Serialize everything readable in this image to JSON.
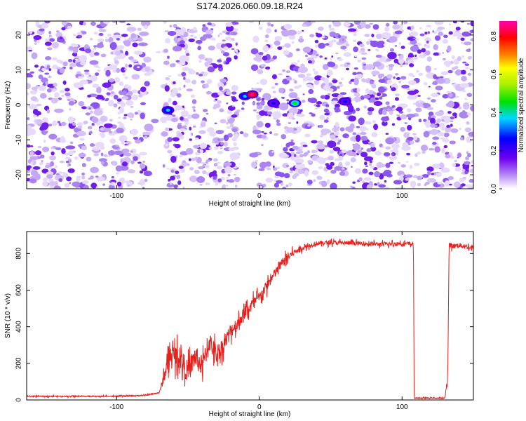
{
  "figure": {
    "title": "S174.2026.060.09.18.R24",
    "colors": {
      "line": "#e8201c",
      "frame": "#000000",
      "background": "#ffffff"
    }
  },
  "chart_data": [
    {
      "type": "heatmap",
      "title": "",
      "xlabel": "Height of straight line (km)",
      "ylabel": "Frequency (Hz)",
      "xlim": [
        -163,
        150
      ],
      "ylim": [
        -24,
        24
      ],
      "xticks": [
        -100,
        0,
        100
      ],
      "yticks": [
        -20,
        -10,
        0,
        10,
        20
      ],
      "colorbar": {
        "label": "Normalized spectral amplitude",
        "range": [
          0,
          0.88
        ],
        "ticks": [
          0.0,
          0.2,
          0.4,
          0.6,
          0.8
        ],
        "colormap": [
          "#ffffff",
          "#6e00f0",
          "#0000ff",
          "#00d8ff",
          "#00e000",
          "#ffff00",
          "#ff8000",
          "#ff0000",
          "#ff00b0"
        ]
      },
      "gaps_x": [
        [
          -78,
          -67
        ],
        [
          -14,
          -4
        ]
      ],
      "features": [
        {
          "x": -64,
          "f": -1.5,
          "amp": 0.22
        },
        {
          "x": -10,
          "f": 2.5,
          "amp": 0.28
        },
        {
          "x": -5,
          "f": 3,
          "amp": 0.88
        },
        {
          "x": 10,
          "f": 0.5,
          "amp": 0.12
        },
        {
          "x": 25,
          "f": 0.5,
          "amp": 0.38
        },
        {
          "x": 60,
          "f": 1,
          "amp": 0.08
        }
      ]
    },
    {
      "type": "line",
      "title": "",
      "xlabel": "Height of straight line (km)",
      "ylabel": "SNR (10 * v/v)",
      "xlim": [
        -163,
        150
      ],
      "ylim": [
        0,
        920
      ],
      "xticks": [
        -100,
        0,
        100
      ],
      "yticks": [
        0,
        200,
        400,
        600,
        800
      ],
      "series": [
        {
          "name": "SNR",
          "x": [
            -163,
            -140,
            -120,
            -100,
            -80,
            -70,
            -66,
            -62,
            -55,
            -50,
            -45,
            -40,
            -35,
            -30,
            -25,
            -20,
            -15,
            -10,
            -5,
            0,
            5,
            10,
            15,
            20,
            25,
            30,
            40,
            50,
            60,
            70,
            80,
            90,
            100,
            108,
            108.5,
            130,
            131,
            132,
            133,
            135,
            140,
            150
          ],
          "y": [
            20,
            20,
            20,
            20,
            25,
            40,
            150,
            250,
            230,
            150,
            240,
            180,
            320,
            250,
            300,
            380,
            420,
            480,
            520,
            560,
            620,
            680,
            740,
            780,
            810,
            830,
            855,
            860,
            858,
            855,
            852,
            850,
            855,
            850,
            10,
            10,
            70,
            120,
            850,
            840,
            845,
            830
          ],
          "noise": [
            6,
            6,
            6,
            6,
            6,
            8,
            90,
            120,
            140,
            130,
            140,
            130,
            120,
            110,
            100,
            90,
            85,
            80,
            80,
            70,
            70,
            60,
            60,
            55,
            35,
            30,
            25,
            25,
            25,
            25,
            25,
            25,
            25,
            25,
            6,
            6,
            20,
            40,
            30,
            30,
            30,
            30
          ]
        }
      ]
    }
  ]
}
